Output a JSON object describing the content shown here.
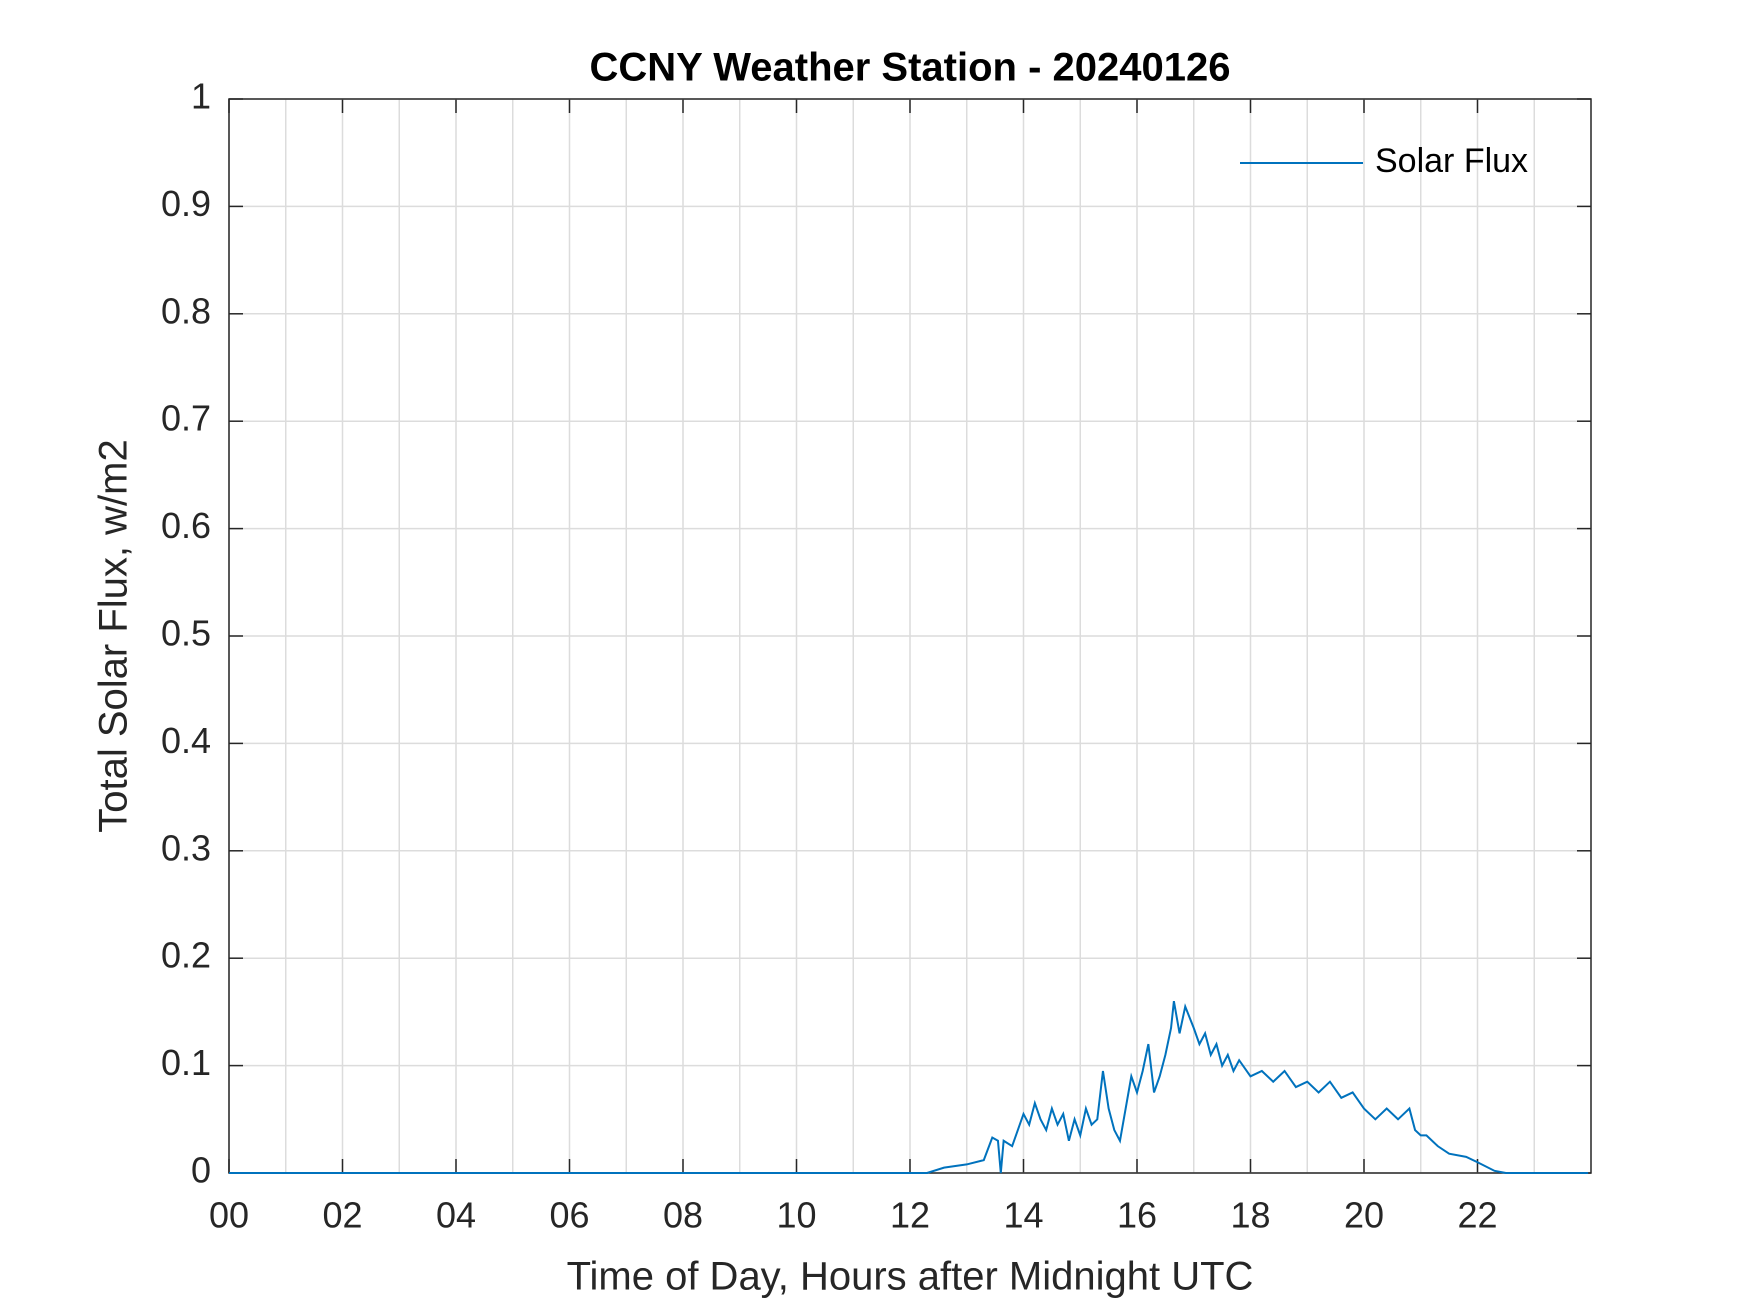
{
  "chart_data": {
    "type": "line",
    "title": "CCNY Weather Station - 20240126",
    "x_label": "Time of Day, Hours after Midnight UTC",
    "y_label": "Total Solar Flux, w/m2",
    "xlim": [
      0,
      24
    ],
    "ylim": [
      0,
      1
    ],
    "xticks": [
      {
        "value": 0,
        "label": "00"
      },
      {
        "value": 2,
        "label": "02"
      },
      {
        "value": 4,
        "label": "04"
      },
      {
        "value": 6,
        "label": "06"
      },
      {
        "value": 8,
        "label": "08"
      },
      {
        "value": 10,
        "label": "10"
      },
      {
        "value": 12,
        "label": "12"
      },
      {
        "value": 14,
        "label": "14"
      },
      {
        "value": 16,
        "label": "16"
      },
      {
        "value": 18,
        "label": "18"
      },
      {
        "value": 20,
        "label": "20"
      },
      {
        "value": 22,
        "label": "22"
      }
    ],
    "xminorgrid": [
      1,
      3,
      5,
      7,
      9,
      11,
      13,
      15,
      17,
      19,
      21,
      23
    ],
    "yticks": [
      0,
      0.1,
      0.2,
      0.3,
      0.4,
      0.5,
      0.6,
      0.7,
      0.8,
      0.9,
      1
    ],
    "grid": true,
    "legend": "top-right",
    "x": [
      0,
      12.3,
      12.6,
      13.0,
      13.3,
      13.45,
      13.55,
      13.6,
      13.65,
      13.8,
      13.9,
      14.0,
      14.1,
      14.2,
      14.3,
      14.4,
      14.5,
      14.6,
      14.7,
      14.8,
      14.9,
      15.0,
      15.1,
      15.2,
      15.3,
      15.4,
      15.5,
      15.6,
      15.7,
      15.8,
      15.9,
      16.0,
      16.1,
      16.2,
      16.3,
      16.4,
      16.5,
      16.6,
      16.65,
      16.75,
      16.85,
      17.0,
      17.1,
      17.2,
      17.3,
      17.4,
      17.5,
      17.6,
      17.7,
      17.8,
      18.0,
      18.2,
      18.4,
      18.6,
      18.8,
      19.0,
      19.2,
      19.4,
      19.6,
      19.8,
      20.0,
      20.2,
      20.4,
      20.6,
      20.8,
      20.9,
      21.0,
      21.1,
      21.3,
      21.5,
      21.8,
      22.0,
      22.3,
      22.5,
      23.95
    ],
    "series": [
      {
        "name": "Solar Flux",
        "color": "#0072bd",
        "values": [
          0,
          0,
          0.005,
          0.008,
          0.012,
          0.033,
          0.03,
          0,
          0.03,
          0.025,
          0.04,
          0.055,
          0.045,
          0.065,
          0.05,
          0.04,
          0.06,
          0.045,
          0.055,
          0.03,
          0.05,
          0.035,
          0.06,
          0.045,
          0.05,
          0.095,
          0.06,
          0.04,
          0.03,
          0.06,
          0.09,
          0.075,
          0.095,
          0.12,
          0.075,
          0.09,
          0.11,
          0.135,
          0.16,
          0.13,
          0.155,
          0.135,
          0.12,
          0.13,
          0.11,
          0.12,
          0.1,
          0.11,
          0.095,
          0.105,
          0.09,
          0.095,
          0.085,
          0.095,
          0.08,
          0.085,
          0.075,
          0.085,
          0.07,
          0.075,
          0.06,
          0.05,
          0.06,
          0.05,
          0.06,
          0.04,
          0.035,
          0.035,
          0.025,
          0.018,
          0.015,
          0.01,
          0.002,
          0,
          0
        ]
      }
    ]
  }
}
